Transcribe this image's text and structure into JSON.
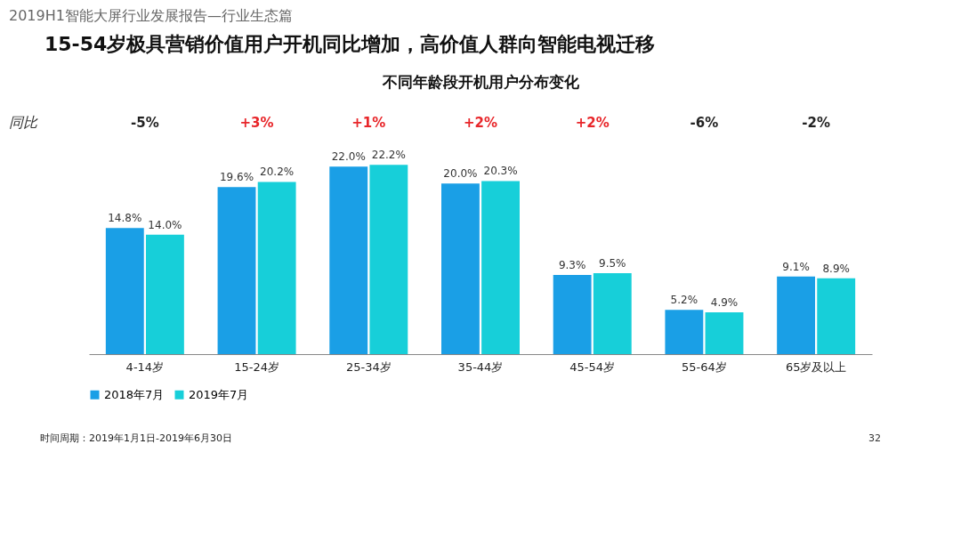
{
  "chart_data": {
    "type": "bar",
    "title": "15-54岁极具营销价值用户开机同比增加，高价值人群向智能电视迁移",
    "subtitle": "不同年龄段开机用户分布变化",
    "categories": [
      "4-14岁",
      "15-24岁",
      "25-34岁",
      "35-44岁",
      "45-54岁",
      "55-64岁",
      "65岁及以上"
    ],
    "series": [
      {
        "name": "2018年7月",
        "color": "#1a9fe6",
        "values": [
          14.8,
          19.6,
          22.0,
          20.0,
          9.3,
          5.2,
          9.1
        ],
        "value_labels": [
          "14.8%",
          "19.6%",
          "22.0%",
          "20.0%",
          "9.3%",
          "5.2%",
          "9.1%"
        ]
      },
      {
        "name": "2019年7月",
        "color": "#17cfd9",
        "values": [
          14.0,
          20.2,
          22.2,
          20.3,
          9.5,
          4.9,
          8.9
        ],
        "value_labels": [
          "14.0%",
          "20.2%",
          "22.2%",
          "20.3%",
          "9.5%",
          "4.9%",
          "8.9%"
        ]
      }
    ],
    "legend": "bottom",
    "annotations": [
      "2019H1智能大屏行业发展报告—行业生态篇",
      "同比",
      "时间周期：2019年1月1日-2019年6月30日",
      "32",
      "-5%",
      "+3%",
      "+1%",
      "+2%",
      "+2%",
      "-6%",
      "-2%"
    ]
  }
}
